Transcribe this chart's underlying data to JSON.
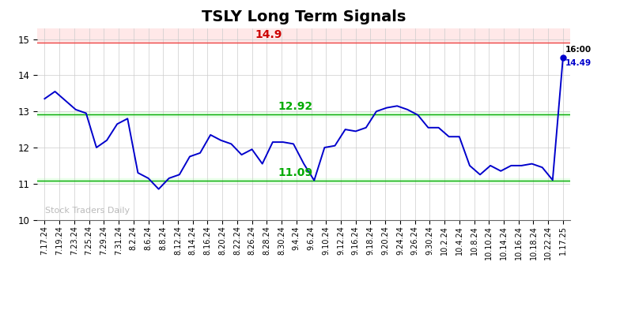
{
  "title": "TSLY Long Term Signals",
  "xlabels": [
    "7.17.24",
    "7.19.24",
    "7.23.24",
    "7.25.24",
    "7.29.24",
    "7.31.24",
    "8.2.24",
    "8.6.24",
    "8.8.24",
    "8.12.24",
    "8.14.24",
    "8.16.24",
    "8.20.24",
    "8.22.24",
    "8.26.24",
    "8.28.24",
    "8.30.24",
    "9.4.24",
    "9.6.24",
    "9.10.24",
    "9.12.24",
    "9.16.24",
    "9.18.24",
    "9.20.24",
    "9.24.24",
    "9.26.24",
    "9.30.24",
    "10.2.24",
    "10.4.24",
    "10.8.24",
    "10.10.24",
    "10.14.24",
    "10.16.24",
    "10.18.24",
    "10.22.24",
    "1.17.25"
  ],
  "y_values": [
    13.35,
    13.55,
    13.3,
    13.05,
    12.95,
    12.0,
    12.2,
    12.65,
    12.8,
    11.3,
    11.15,
    10.85,
    11.15,
    11.25,
    11.75,
    11.85,
    12.35,
    12.2,
    12.1,
    11.8,
    11.95,
    11.55,
    12.15,
    12.15,
    12.1,
    11.55,
    11.09,
    12.0,
    12.05,
    12.5,
    12.45,
    12.55,
    13.0,
    13.1,
    13.15,
    13.05,
    12.9,
    12.55,
    12.55,
    12.3,
    12.3,
    11.5,
    11.25,
    11.5,
    11.35,
    11.5,
    11.5,
    11.55,
    11.45,
    11.1,
    14.49
  ],
  "line_color": "#0000cc",
  "hline_red": 14.9,
  "hline_red_color": "#ee4444",
  "hline_red_bg": "#ffe8e8",
  "hline_green_high": 12.92,
  "hline_green_low": 11.09,
  "hline_green_color": "#00aa00",
  "hline_green_bg": "#e8ffe8",
  "ylim_min": 10,
  "ylim_max": 15.3,
  "yticks": [
    10,
    11,
    12,
    13,
    14,
    15
  ],
  "watermark": "Stock Traders Daily",
  "watermark_color": "#bbbbbb",
  "label_red_text": "14.9",
  "label_red_color": "#cc0000",
  "label_green_high_text": "12.92",
  "label_green_low_text": "11.09",
  "label_green_color": "#00aa00",
  "last_label": "16:00",
  "last_value_label": "14.49",
  "last_label_color": "#000000",
  "last_value_color": "#0000cc",
  "background_color": "#ffffff",
  "grid_color": "#cccccc",
  "title_fontsize": 14,
  "tick_fontsize": 7.0,
  "fig_width": 7.84,
  "fig_height": 3.98
}
